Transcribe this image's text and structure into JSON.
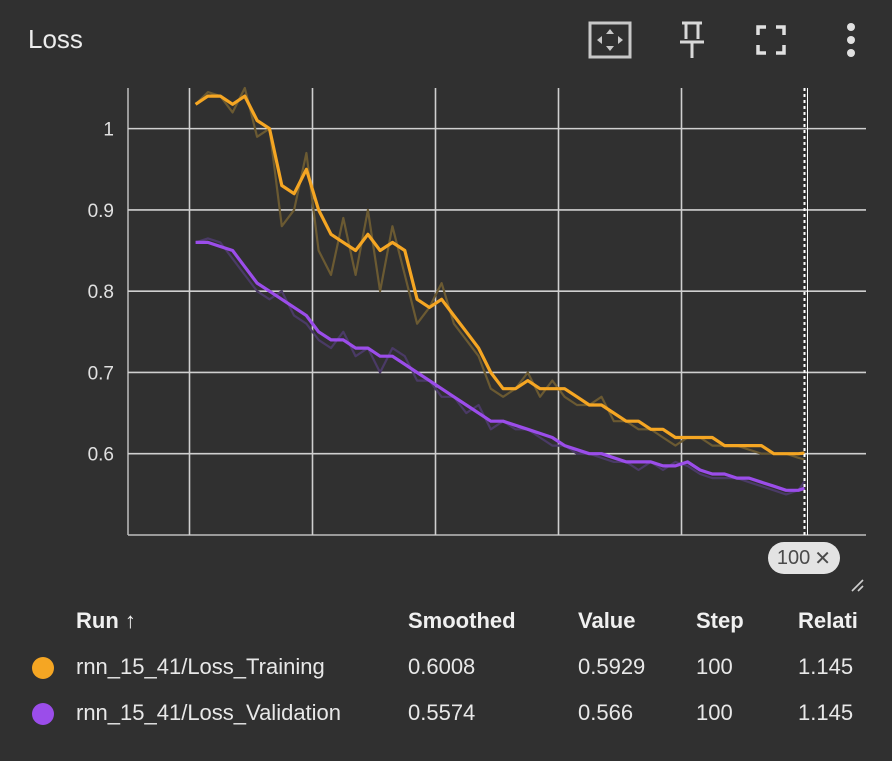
{
  "card": {
    "title": "Loss",
    "icons": [
      "fit-domain-icon",
      "pin-icon",
      "fullscreen-icon",
      "more-vert-icon"
    ]
  },
  "chart_data": {
    "type": "line",
    "title": "Loss",
    "xlabel": "",
    "ylabel": "",
    "xlim": [
      -10,
      110
    ],
    "ylim": [
      0.5,
      1.05
    ],
    "x_ticks": [
      "0",
      "20",
      "40",
      "60",
      "80"
    ],
    "y_ticks": [
      "0.6",
      "0.7",
      "0.8",
      "0.9",
      "1"
    ],
    "grid": true,
    "hover_step": 100,
    "hover_label": "100",
    "series": [
      {
        "name": "rnn_15_41/Loss_Training",
        "color": "#f5a623",
        "raw_color": "#6b5a32",
        "x": [
          1,
          3,
          5,
          7,
          9,
          11,
          13,
          15,
          17,
          19,
          21,
          23,
          25,
          27,
          29,
          31,
          33,
          35,
          37,
          39,
          41,
          43,
          45,
          47,
          49,
          51,
          53,
          55,
          57,
          59,
          61,
          63,
          65,
          67,
          69,
          71,
          73,
          75,
          77,
          79,
          81,
          83,
          85,
          87,
          89,
          91,
          93,
          95,
          97,
          99,
          100
        ],
        "smoothed": [
          1.03,
          1.04,
          1.04,
          1.03,
          1.04,
          1.01,
          1.0,
          0.93,
          0.92,
          0.95,
          0.9,
          0.87,
          0.86,
          0.85,
          0.87,
          0.85,
          0.86,
          0.85,
          0.79,
          0.78,
          0.79,
          0.77,
          0.75,
          0.73,
          0.7,
          0.68,
          0.68,
          0.69,
          0.68,
          0.68,
          0.68,
          0.67,
          0.66,
          0.66,
          0.65,
          0.64,
          0.64,
          0.63,
          0.63,
          0.62,
          0.62,
          0.62,
          0.62,
          0.61,
          0.61,
          0.61,
          0.61,
          0.6,
          0.6,
          0.6,
          0.6008
        ],
        "values": [
          1.03,
          1.045,
          1.04,
          1.02,
          1.05,
          0.99,
          1.0,
          0.88,
          0.9,
          0.97,
          0.85,
          0.82,
          0.89,
          0.82,
          0.9,
          0.8,
          0.88,
          0.82,
          0.76,
          0.78,
          0.81,
          0.76,
          0.74,
          0.72,
          0.68,
          0.67,
          0.68,
          0.7,
          0.67,
          0.69,
          0.67,
          0.66,
          0.66,
          0.67,
          0.64,
          0.64,
          0.63,
          0.63,
          0.62,
          0.61,
          0.62,
          0.62,
          0.61,
          0.61,
          0.61,
          0.605,
          0.6,
          0.6,
          0.6,
          0.595,
          0.5929
        ]
      },
      {
        "name": "rnn_15_41/Loss_Validation",
        "color": "#9b4dea",
        "raw_color": "#4a3a66",
        "x": [
          1,
          3,
          5,
          7,
          9,
          11,
          13,
          15,
          17,
          19,
          21,
          23,
          25,
          27,
          29,
          31,
          33,
          35,
          37,
          39,
          41,
          43,
          45,
          47,
          49,
          51,
          53,
          55,
          57,
          59,
          61,
          63,
          65,
          67,
          69,
          71,
          73,
          75,
          77,
          79,
          81,
          83,
          85,
          87,
          89,
          91,
          93,
          95,
          97,
          99,
          100
        ],
        "smoothed": [
          0.86,
          0.86,
          0.855,
          0.85,
          0.83,
          0.81,
          0.8,
          0.79,
          0.78,
          0.77,
          0.75,
          0.74,
          0.74,
          0.73,
          0.73,
          0.72,
          0.72,
          0.71,
          0.7,
          0.69,
          0.68,
          0.67,
          0.66,
          0.65,
          0.64,
          0.64,
          0.635,
          0.63,
          0.625,
          0.62,
          0.61,
          0.605,
          0.6,
          0.6,
          0.595,
          0.59,
          0.59,
          0.59,
          0.585,
          0.585,
          0.59,
          0.58,
          0.575,
          0.575,
          0.57,
          0.57,
          0.565,
          0.56,
          0.555,
          0.555,
          0.5574
        ],
        "values": [
          0.86,
          0.865,
          0.86,
          0.84,
          0.82,
          0.8,
          0.79,
          0.8,
          0.77,
          0.76,
          0.74,
          0.73,
          0.75,
          0.72,
          0.73,
          0.7,
          0.73,
          0.72,
          0.69,
          0.69,
          0.67,
          0.67,
          0.65,
          0.66,
          0.63,
          0.64,
          0.63,
          0.63,
          0.62,
          0.61,
          0.61,
          0.6,
          0.6,
          0.595,
          0.59,
          0.59,
          0.58,
          0.59,
          0.58,
          0.59,
          0.585,
          0.575,
          0.57,
          0.57,
          0.57,
          0.565,
          0.56,
          0.555,
          0.55,
          0.555,
          0.566
        ]
      }
    ]
  },
  "table": {
    "headers": {
      "run": "Run ↑",
      "smoothed": "Smoothed",
      "value": "Value",
      "step": "Step",
      "relative": "Relati"
    },
    "rows": [
      {
        "color": "#f5a623",
        "run": "rnn_15_41/Loss_Training",
        "smoothed": "0.6008",
        "value": "0.5929",
        "step": "100",
        "relative": "1.145"
      },
      {
        "color": "#9b4dea",
        "run": "rnn_15_41/Loss_Validation",
        "smoothed": "0.5574",
        "value": "0.566",
        "step": "100",
        "relative": "1.145"
      }
    ]
  }
}
